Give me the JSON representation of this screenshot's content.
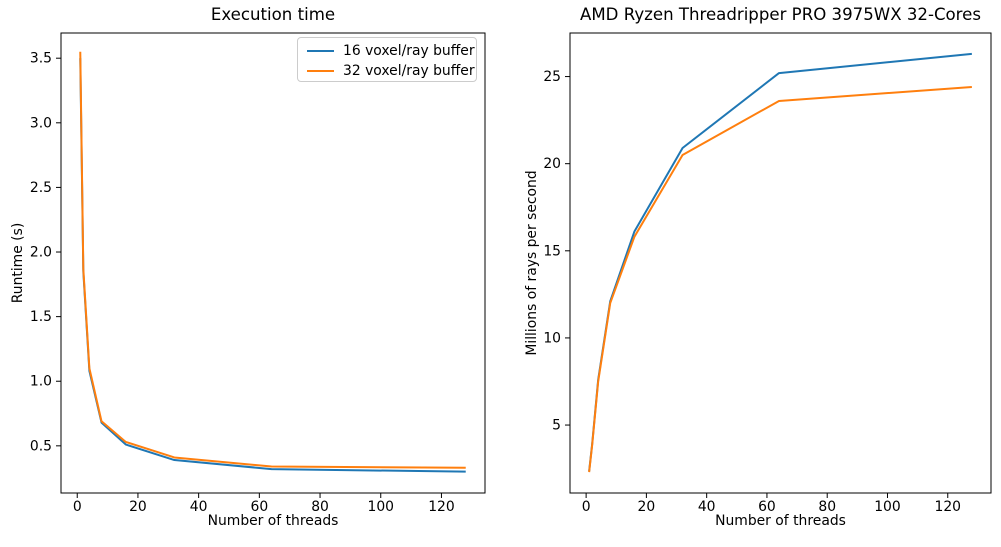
{
  "figure": {
    "background": "#ffffff",
    "text_color": "#000000",
    "spine_color": "#000000"
  },
  "chart_data": [
    {
      "id": "execution-time",
      "type": "line",
      "title": "Execution time",
      "xlabel": "Number of threads",
      "ylabel": "Runtime (s)",
      "x": [
        1,
        2,
        4,
        8,
        16,
        32,
        64,
        128
      ],
      "series": [
        {
          "name": "16 voxel/ray buffer",
          "color": "#1f77b4",
          "values": [
            3.5,
            1.85,
            1.08,
            0.68,
            0.51,
            0.39,
            0.32,
            0.3
          ]
        },
        {
          "name": "32 voxel/ray buffer",
          "color": "#ff7f0e",
          "values": [
            3.55,
            1.87,
            1.1,
            0.69,
            0.53,
            0.41,
            0.34,
            0.33
          ]
        }
      ],
      "xlim": [
        -5.35,
        134.35
      ],
      "ylim": [
        0.135,
        3.695
      ],
      "xticks": [
        0,
        20,
        40,
        60,
        80,
        100,
        120
      ],
      "xtick_labels": [
        "0",
        "20",
        "40",
        "60",
        "80",
        "100",
        "120"
      ],
      "yticks": [
        0.5,
        1.0,
        1.5,
        2.0,
        2.5,
        3.0,
        3.5
      ],
      "ytick_labels": [
        "0.5",
        "1.0",
        "1.5",
        "2.0",
        "2.5",
        "3.0",
        "3.5"
      ],
      "grid": false,
      "legend": {
        "show": true,
        "position": "upper right",
        "entries": [
          "16 voxel/ray buffer",
          "32 voxel/ray buffer"
        ]
      }
    },
    {
      "id": "rays-per-second",
      "type": "line",
      "title": "AMD Ryzen Threadripper PRO 3975WX 32-Cores",
      "xlabel": "Number of threads",
      "ylabel": "Millions of rays per second",
      "x": [
        1,
        2,
        4,
        8,
        16,
        32,
        64,
        128
      ],
      "series": [
        {
          "name": "16 voxel/ray buffer",
          "color": "#1f77b4",
          "values": [
            2.35,
            3.9,
            7.6,
            12.1,
            16.1,
            20.9,
            25.2,
            26.3
          ]
        },
        {
          "name": "32 voxel/ray buffer",
          "color": "#ff7f0e",
          "values": [
            2.3,
            3.85,
            7.5,
            12.0,
            15.8,
            20.5,
            23.6,
            24.4
          ]
        }
      ],
      "xlim": [
        -5.35,
        134.35
      ],
      "ylim": [
        1.1,
        27.5
      ],
      "xticks": [
        0,
        20,
        40,
        60,
        80,
        100,
        120
      ],
      "xtick_labels": [
        "0",
        "20",
        "40",
        "60",
        "80",
        "100",
        "120"
      ],
      "yticks": [
        5,
        10,
        15,
        20,
        25
      ],
      "ytick_labels": [
        "5",
        "10",
        "15",
        "20",
        "25"
      ],
      "grid": false,
      "legend": {
        "show": false
      }
    }
  ]
}
